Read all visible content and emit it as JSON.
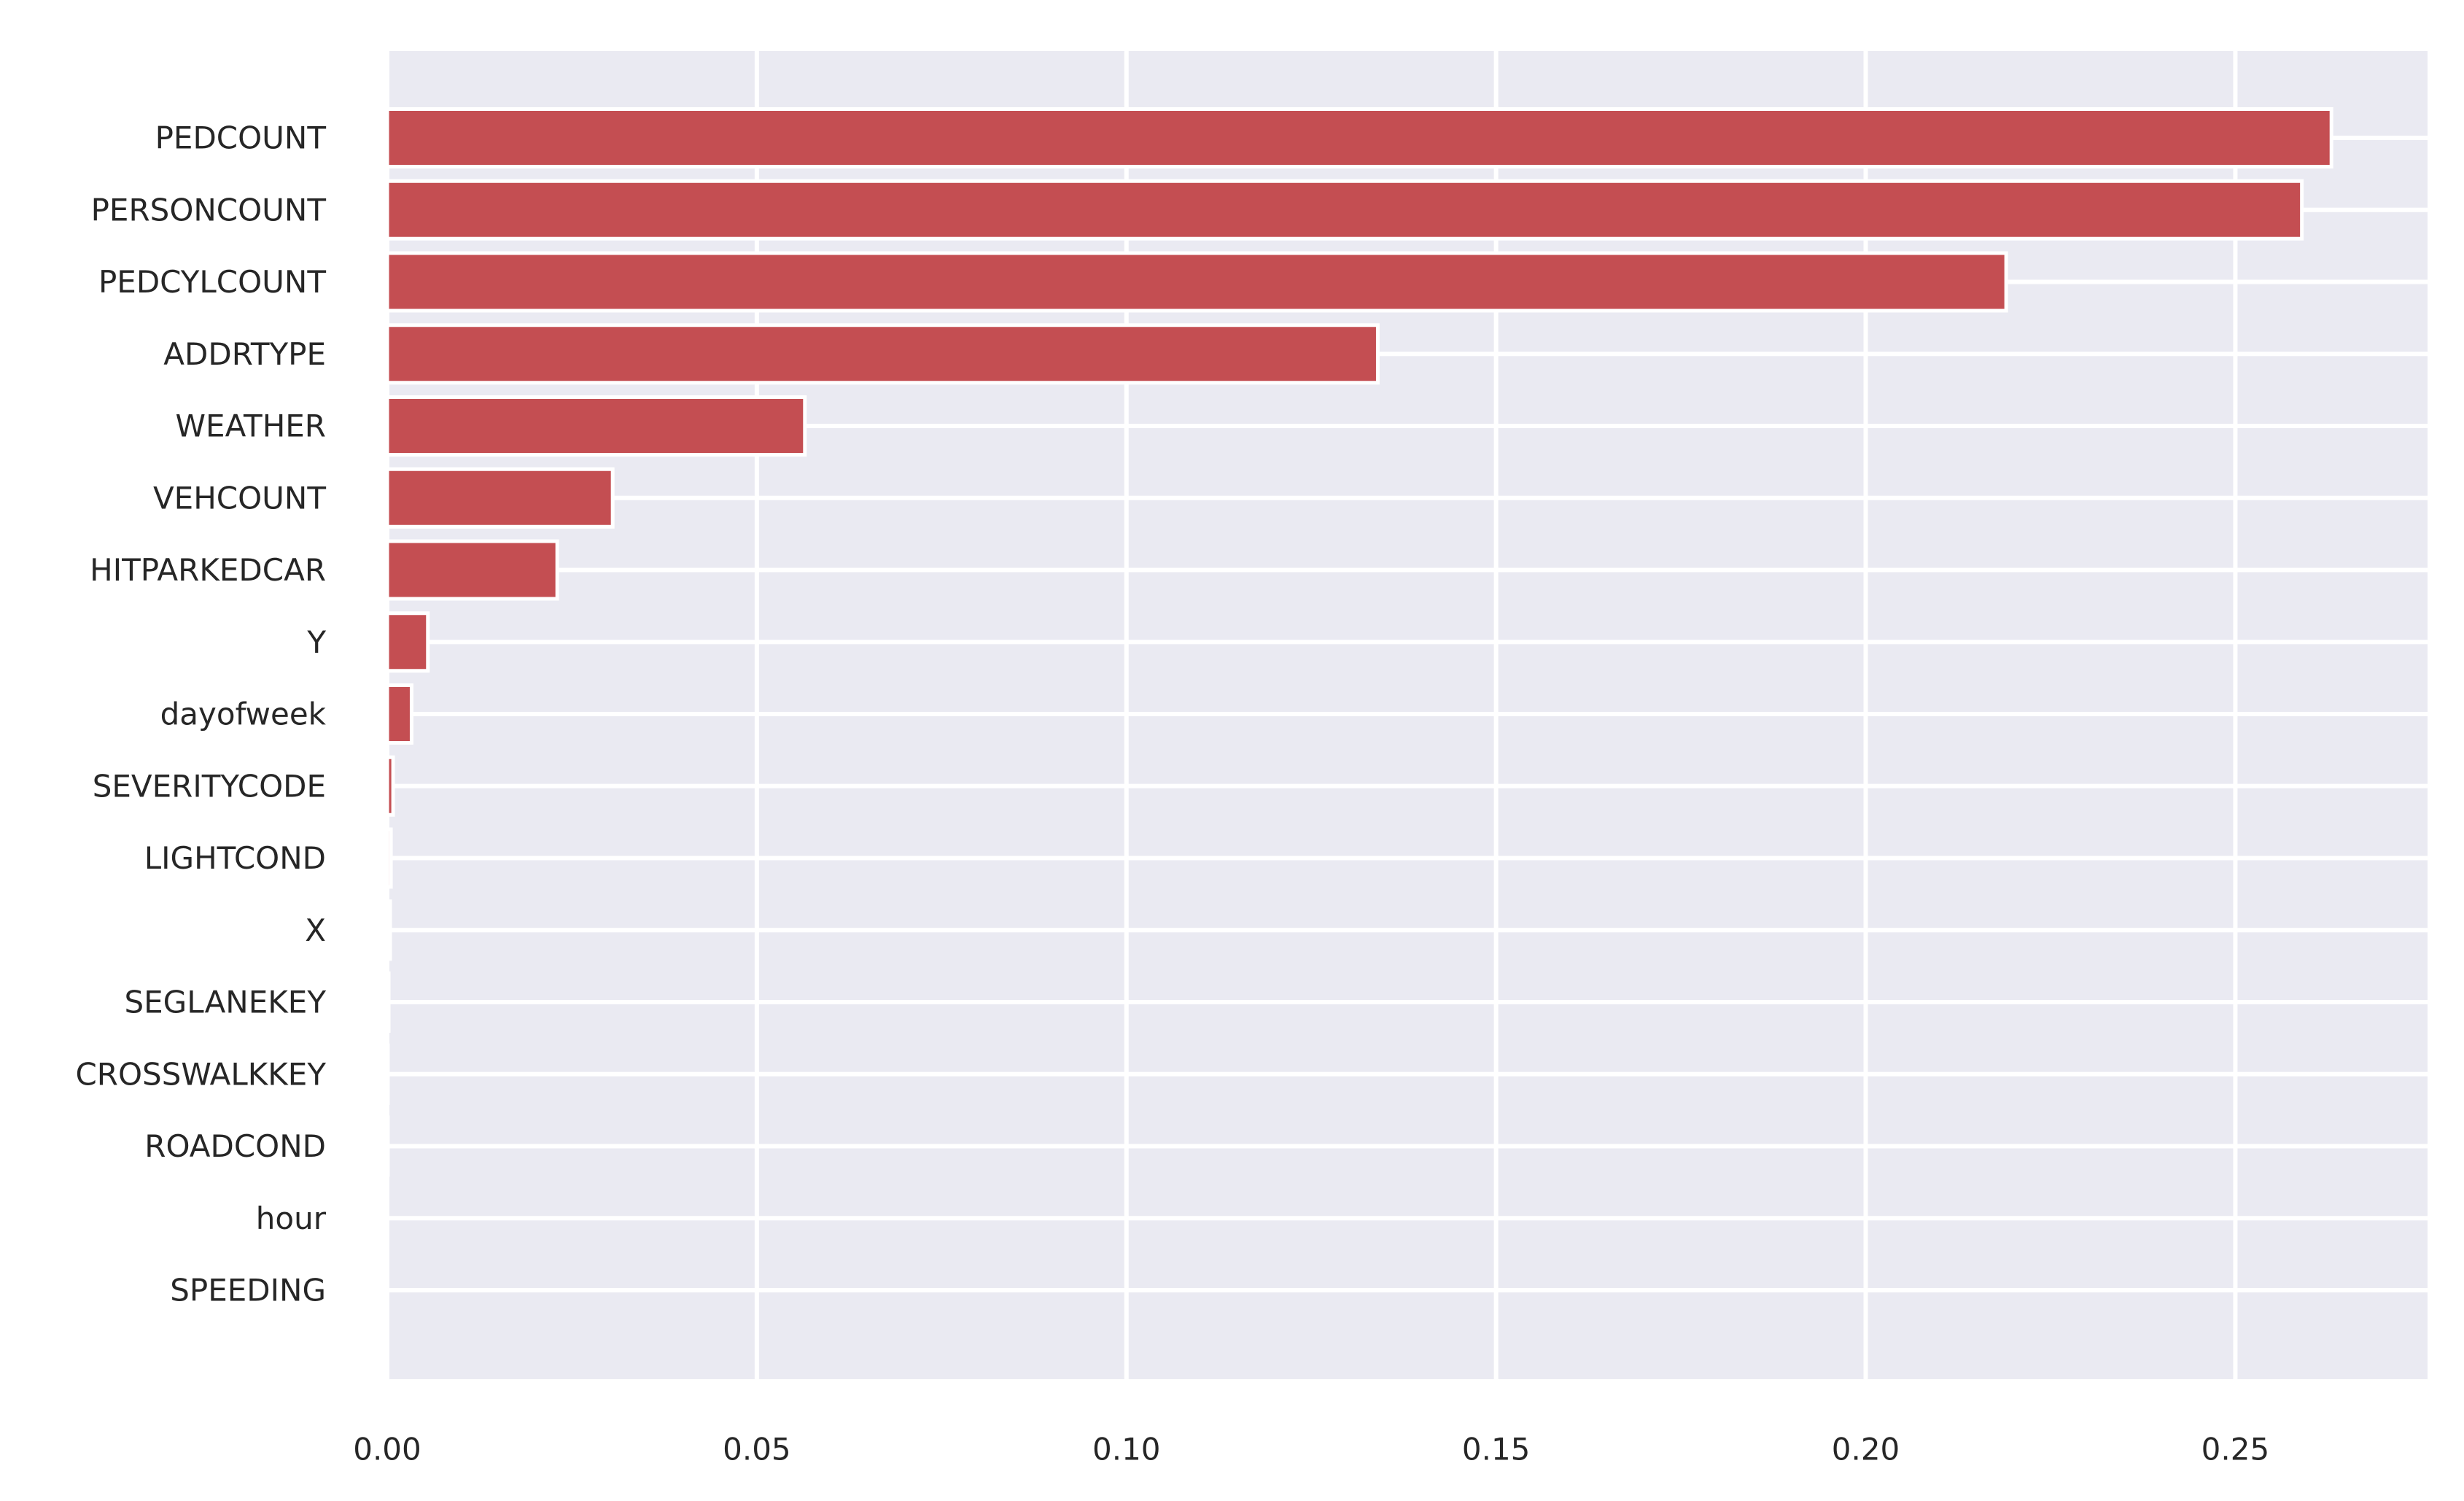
{
  "chart_data": {
    "type": "bar",
    "orientation": "horizontal",
    "title": "",
    "xlabel": "",
    "ylabel": "",
    "categories": [
      "PEDCOUNT",
      "PERSONCOUNT",
      "PEDCYLCOUNT",
      "ADDRTYPE",
      "WEATHER",
      "VEHCOUNT",
      "HITPARKEDCAR",
      "Y",
      "dayofweek",
      "SEVERITYCODE",
      "LIGHTCOND",
      "X",
      "SEGLANEKEY",
      "CROSSWALKKEY",
      "ROADCOND",
      "hour",
      "SPEEDING"
    ],
    "values": [
      0.263,
      0.259,
      0.219,
      0.134,
      0.0565,
      0.0305,
      0.023,
      0.0055,
      0.0033,
      0.0008,
      0.0005,
      0.0004,
      0.0002,
      0.0001,
      0.0001,
      0.0,
      0.0
    ],
    "xlim": [
      0,
      0.276
    ],
    "xticks": [
      0.0,
      0.05,
      0.1,
      0.15,
      0.2,
      0.25
    ],
    "xtick_labels": [
      "0.00",
      "0.05",
      "0.10",
      "0.15",
      "0.20",
      "0.25"
    ],
    "grid": true,
    "legend": "none",
    "colors": {
      "bar": "#c44e52",
      "background": "#eaeaf2",
      "grid": "#ffffff"
    }
  }
}
